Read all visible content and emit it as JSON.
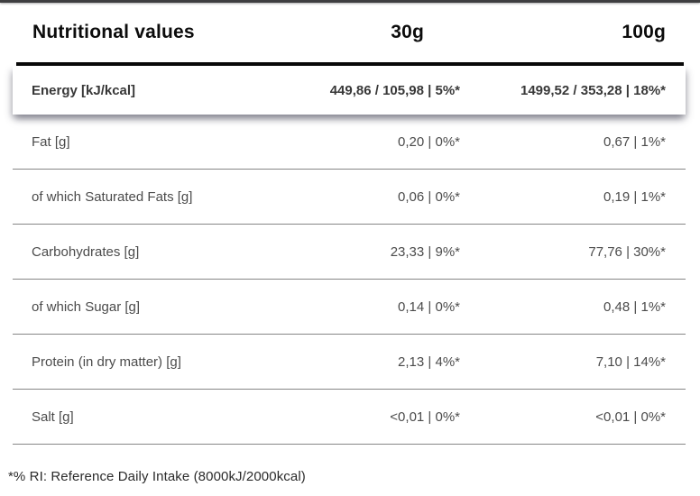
{
  "table": {
    "title": "Nutritional values",
    "columns": {
      "serving_30": "30g",
      "serving_100": "100g"
    },
    "energy_row": {
      "label": "Energy [kJ/kcal]",
      "per_30g": "449,86 / 105,98 | 5%*",
      "per_100g": "1499,52 / 353,28 | 18%*"
    },
    "rows": [
      {
        "label": "Fat [g]",
        "per_30g": "0,20 | 0%*",
        "per_100g": "0,67 | 1%*"
      },
      {
        "label": "of which Saturated Fats [g]",
        "per_30g": "0,06 | 0%*",
        "per_100g": "0,19 | 1%*"
      },
      {
        "label": "Carbohydrates [g]",
        "per_30g": "23,33 | 9%*",
        "per_100g": "77,76 | 30%*"
      },
      {
        "label": "of which Sugar [g]",
        "per_30g": "0,14 | 0%*",
        "per_100g": "0,48 | 1%*"
      },
      {
        "label": "Protein (in dry matter) [g]",
        "per_30g": "2,13 | 4%*",
        "per_100g": "7,10 | 14%*"
      },
      {
        "label": "Salt [g]",
        "per_30g": "<0,01 | 0%*",
        "per_100g": "<0,01 | 0%*"
      }
    ],
    "footnote": "*% RI: Reference Daily Intake (8000kJ/2000kcal)"
  },
  "colors": {
    "header_text": "#0c0c0c",
    "row_text": "#4b4b4b",
    "separator": "#868686",
    "thick_rule": "#0a0a0a",
    "background": "#ffffff"
  }
}
